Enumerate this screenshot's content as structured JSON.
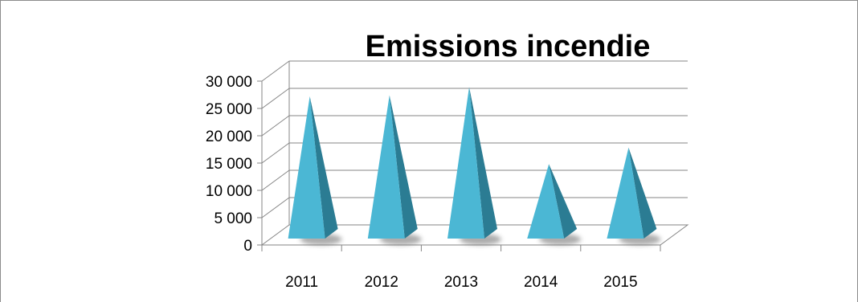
{
  "chart_data": {
    "type": "bar",
    "style": "3d-pyramid",
    "title": "Emissions incendie",
    "categories": [
      "2011",
      "2012",
      "2013",
      "2014",
      "2015"
    ],
    "values": [
      25200,
      25400,
      26900,
      12800,
      15800
    ],
    "ylim": [
      0,
      30000
    ],
    "yticks": [
      0,
      5000,
      10000,
      15000,
      20000,
      25000,
      30000
    ],
    "ytick_labels": [
      "0",
      "5 000",
      "10 000",
      "15 000",
      "20 000",
      "25 000",
      "30 000"
    ],
    "xlabel": "",
    "ylabel": "",
    "grid": true,
    "legend": "none",
    "colors": {
      "face_light": "#4bb7d4",
      "face_dark": "#2b7c93",
      "shadow": "#6a6a6a",
      "grid": "#868686",
      "axis": "#868686"
    }
  }
}
